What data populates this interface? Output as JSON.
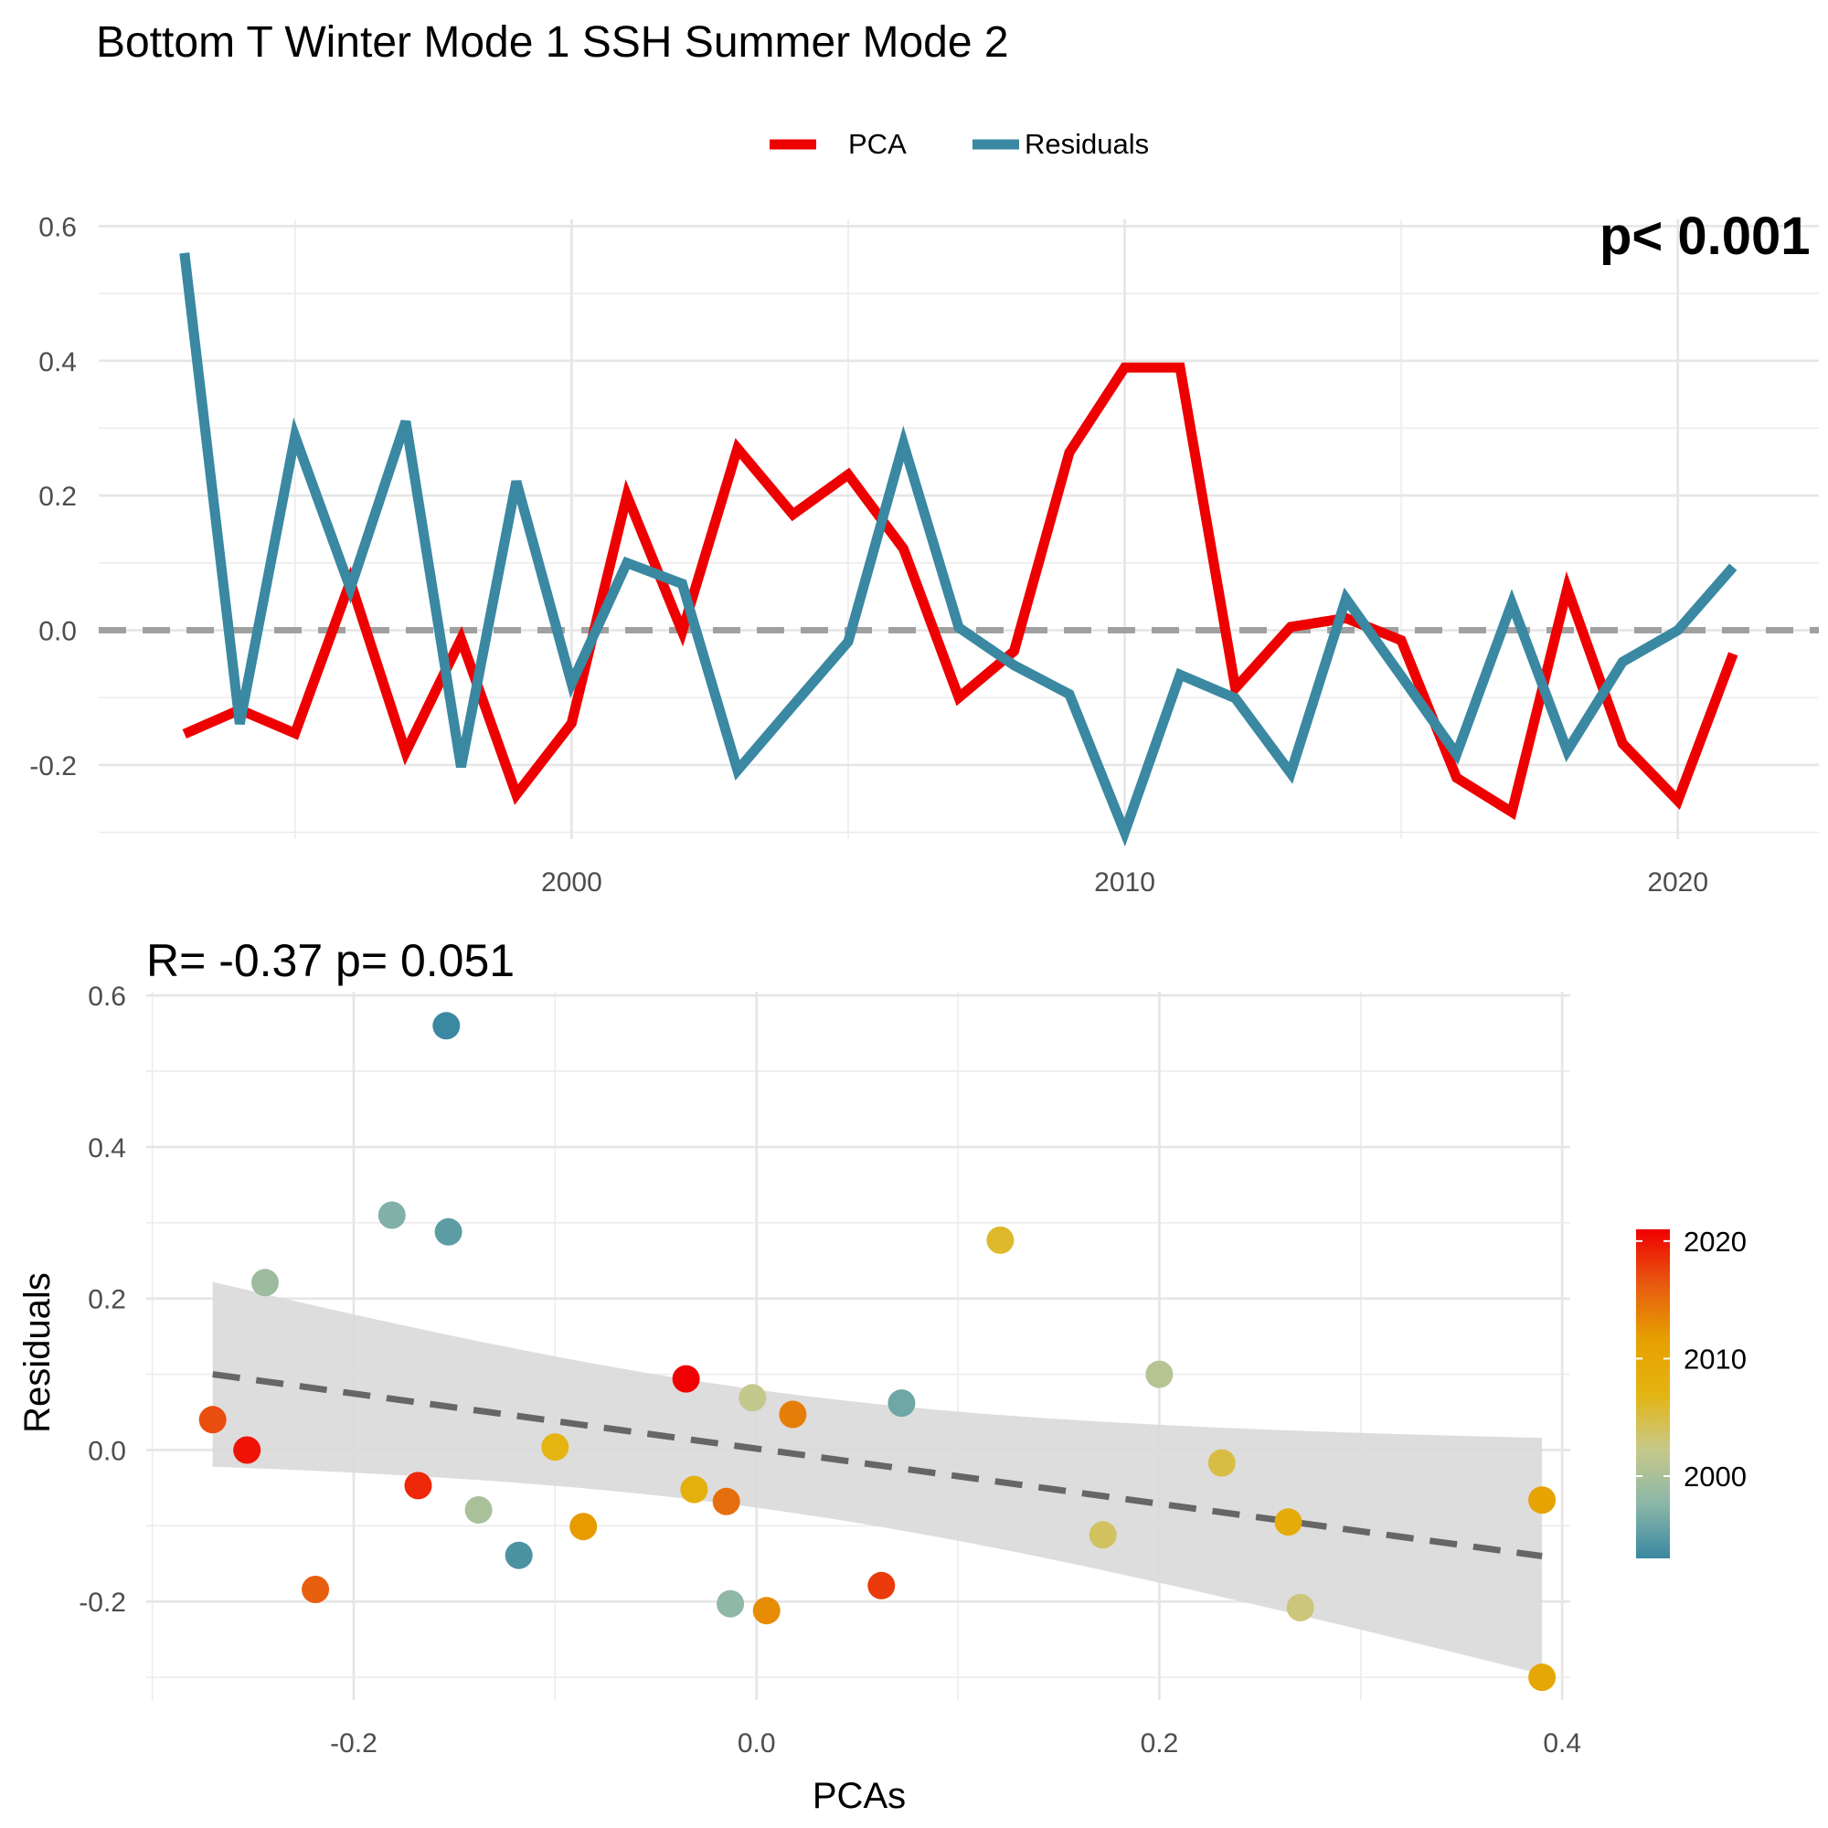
{
  "title": "Bottom T Winter Mode 1 SSH Summer Mode 2",
  "legend": {
    "items": [
      {
        "label": "PCA",
        "color": "#EE0000"
      },
      {
        "label": "Residuals",
        "color": "#3A88A2"
      }
    ]
  },
  "colorbar": {
    "labels": [
      "2020",
      "2010",
      "2000"
    ],
    "gradient": [
      "#3A88A2",
      "#8CB7A8",
      "#C7C98A",
      "#E4B411",
      "#E6A000",
      "#E85A11",
      "#F00000"
    ]
  },
  "chart_data": [
    {
      "type": "line",
      "title": "Bottom T Winter Mode 1 SSH Summer Mode 2",
      "xlabel": "",
      "ylabel": "",
      "x_ticks": [
        "2000",
        "2010",
        "2020"
      ],
      "y_ticks": [
        "0.6",
        "0.4",
        "0.2",
        "0.0",
        "-0.2"
      ],
      "ylim": [
        -0.31,
        0.61
      ],
      "xlim": [
        1991.45,
        2022.55
      ],
      "grid": true,
      "legend_position": "top",
      "reference_line": {
        "y": 0.0,
        "style": "dashed",
        "color": "#A0A0A0"
      },
      "corner_text": "p< 0.001",
      "x": [
        1993,
        1994,
        1995,
        1996,
        1997,
        1998,
        1999,
        2000,
        2001,
        2002,
        2003,
        2004,
        2005,
        2006,
        2007,
        2008,
        2009,
        2010,
        2011,
        2012,
        2013,
        2014,
        2015,
        2016,
        2017,
        2018,
        2019,
        2020,
        2021
      ],
      "series": [
        {
          "name": "PCA",
          "color": "#EE0000",
          "values": [
            -0.154,
            -0.118,
            -0.153,
            0.072,
            -0.181,
            -0.013,
            -0.244,
            -0.138,
            0.2,
            -0.002,
            0.27,
            0.172,
            0.231,
            0.121,
            -0.1,
            -0.031,
            0.264,
            0.39,
            0.39,
            -0.086,
            0.005,
            0.018,
            -0.015,
            -0.219,
            -0.27,
            0.062,
            -0.168,
            -0.253,
            -0.035
          ]
        },
        {
          "name": "Residuals",
          "color": "#3A88A2",
          "values": [
            0.56,
            -0.139,
            0.288,
            0.062,
            0.31,
            -0.203,
            0.221,
            -0.079,
            0.1,
            0.069,
            -0.208,
            -0.112,
            -0.017,
            0.277,
            0.004,
            -0.052,
            -0.095,
            -0.3,
            -0.066,
            -0.101,
            -0.212,
            0.047,
            -0.068,
            -0.184,
            0.04,
            -0.179,
            -0.047,
            0.0,
            0.094
          ]
        }
      ]
    },
    {
      "type": "scatter",
      "title": "R= -0.37  p= 0.051",
      "xlabel": "PCAs",
      "ylabel": "Residuals",
      "x_ticks": [
        "-0.2",
        "0.0",
        "0.2",
        "0.4"
      ],
      "y_ticks": [
        "0.6",
        "0.4",
        "0.2",
        "0.0",
        "-0.2"
      ],
      "xlim": [
        -0.303,
        0.404
      ],
      "ylim": [
        -0.33,
        0.605
      ],
      "grid": true,
      "color_scale": {
        "variable": "year",
        "legend_position": "right",
        "labels": [
          "2020",
          "2010",
          "2000"
        ]
      },
      "points": [
        {
          "x": -0.154,
          "y": 0.56,
          "year": 1993
        },
        {
          "x": -0.118,
          "y": -0.139,
          "year": 1994
        },
        {
          "x": -0.153,
          "y": 0.288,
          "year": 1995
        },
        {
          "x": 0.072,
          "y": 0.062,
          "year": 1996
        },
        {
          "x": -0.181,
          "y": 0.31,
          "year": 1997
        },
        {
          "x": -0.013,
          "y": -0.203,
          "year": 1998
        },
        {
          "x": -0.244,
          "y": 0.221,
          "year": 1999
        },
        {
          "x": -0.138,
          "y": -0.079,
          "year": 2000
        },
        {
          "x": 0.2,
          "y": 0.1,
          "year": 2001
        },
        {
          "x": -0.002,
          "y": 0.069,
          "year": 2002
        },
        {
          "x": 0.27,
          "y": -0.208,
          "year": 2003
        },
        {
          "x": 0.172,
          "y": -0.112,
          "year": 2004
        },
        {
          "x": 0.231,
          "y": -0.017,
          "year": 2005
        },
        {
          "x": 0.121,
          "y": 0.277,
          "year": 2006
        },
        {
          "x": -0.1,
          "y": 0.004,
          "year": 2007
        },
        {
          "x": -0.031,
          "y": -0.052,
          "year": 2008
        },
        {
          "x": 0.264,
          "y": -0.095,
          "year": 2009
        },
        {
          "x": 0.39,
          "y": -0.3,
          "year": 2010
        },
        {
          "x": 0.39,
          "y": -0.066,
          "year": 2011
        },
        {
          "x": -0.086,
          "y": -0.101,
          "year": 2012
        },
        {
          "x": 0.005,
          "y": -0.212,
          "year": 2013
        },
        {
          "x": 0.018,
          "y": 0.047,
          "year": 2014
        },
        {
          "x": -0.015,
          "y": -0.068,
          "year": 2015
        },
        {
          "x": -0.219,
          "y": -0.184,
          "year": 2016
        },
        {
          "x": -0.27,
          "y": 0.04,
          "year": 2017
        },
        {
          "x": 0.062,
          "y": -0.179,
          "year": 2018
        },
        {
          "x": -0.168,
          "y": -0.047,
          "year": 2019
        },
        {
          "x": -0.253,
          "y": 0.0,
          "year": 2020
        },
        {
          "x": -0.035,
          "y": 0.094,
          "year": 2021
        }
      ],
      "fit_line": {
        "style": "dashed",
        "color": "#666666",
        "x": [
          -0.27,
          0.39
        ],
        "y": [
          0.1,
          -0.14
        ],
        "ci_lower": [
          -0.022,
          -0.298
        ],
        "ci_upper": [
          0.222,
          0.016
        ],
        "ci_color": "#D9D9D9"
      }
    }
  ]
}
